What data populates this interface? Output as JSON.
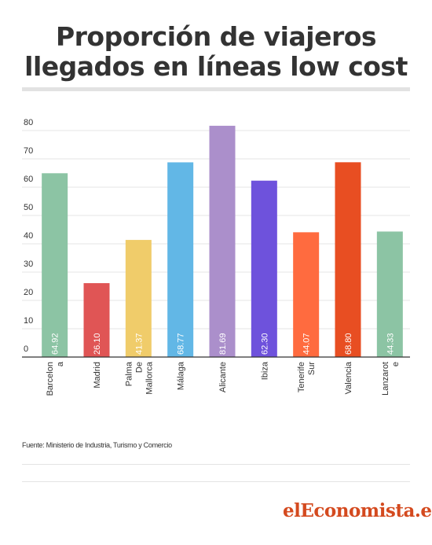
{
  "title": [
    "Proporción de viajeros",
    "llegados en líneas low cost"
  ],
  "source": "Fuente: Ministerio de Industria, Turismo y Comercio",
  "logo": "elEconomista.es",
  "colors": {
    "grid": "#e6e6e6",
    "axis": "#333333",
    "logo": "#d44a1f"
  },
  "chart_data": {
    "type": "bar",
    "title": "Proporción de viajeros llegados en líneas low cost",
    "xlabel": "",
    "ylabel": "",
    "ylim": [
      0,
      80
    ],
    "yticks": [
      0,
      10,
      20,
      30,
      40,
      50,
      60,
      70,
      80
    ],
    "grid": true,
    "categories": [
      [
        "Barcelon",
        "a"
      ],
      [
        "Madrid"
      ],
      [
        "Palma",
        "De",
        "Mallorca"
      ],
      [
        "Málaga"
      ],
      [
        "Alicante"
      ],
      [
        "Ibiza"
      ],
      [
        "Tenerife",
        "Sur"
      ],
      [
        "Valencia"
      ],
      [
        "Lanzarot",
        "e"
      ]
    ],
    "values": [
      64.92,
      26.1,
      41.37,
      68.77,
      81.69,
      62.3,
      44.07,
      68.8,
      44.33
    ],
    "labels": [
      "64.92",
      "26.10",
      "41.37",
      "68.77",
      "81.69",
      "62.30",
      "44.07",
      "68.80",
      "44.33"
    ],
    "colors": [
      "#8cc4a4",
      "#e05555",
      "#f0cc6a",
      "#62b7e6",
      "#ab8fcb",
      "#6e52dc",
      "#ff6b3f",
      "#e84e22",
      "#8cc4a4"
    ]
  }
}
